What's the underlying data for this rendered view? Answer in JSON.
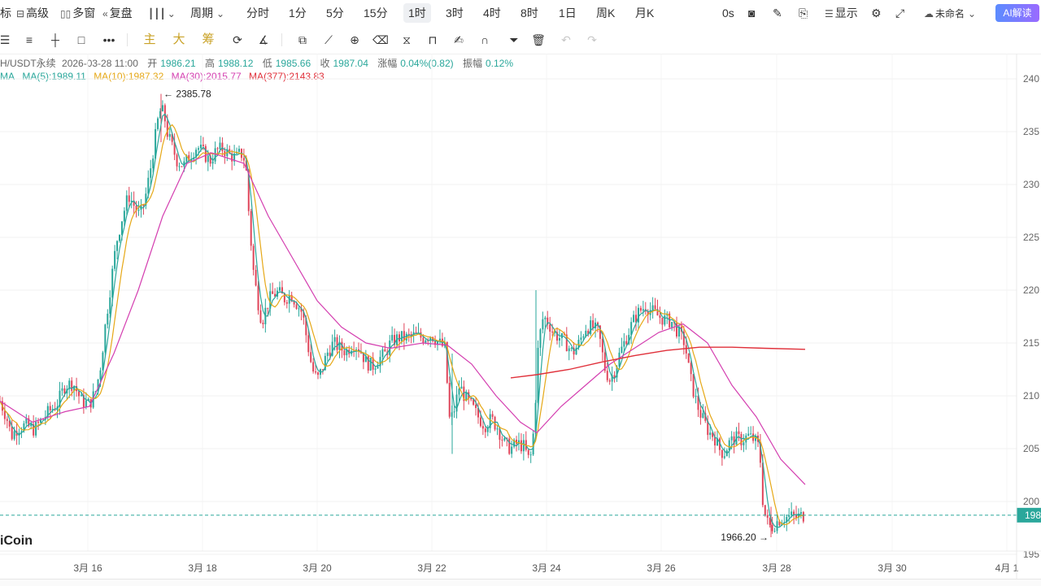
{
  "topbar": {
    "left_partial": "标",
    "advanced": "高级",
    "multi_window": "多窗",
    "replay": "复盘",
    "period": "周期",
    "intervals": [
      "分时",
      "1分",
      "5分",
      "15分",
      "1时",
      "3时",
      "4时",
      "8时",
      "1日",
      "周K",
      "月K"
    ],
    "active_interval": "1时",
    "countdown": "0s",
    "display": "显示",
    "layout_name": "未命名",
    "ai_button": "AI解读"
  },
  "toolbar": {
    "gold_buttons": [
      "主",
      "大",
      "筹"
    ]
  },
  "info": {
    "symbol": "H/USDT永续",
    "datetime": "2026-03-28 11:00",
    "open_label": "开",
    "open": "1986.21",
    "high_label": "高",
    "high": "1988.12",
    "low_label": "低",
    "low": "1985.66",
    "close_label": "收",
    "close": "1987.04",
    "change_label": "涨幅",
    "change": "0.04%(0.82)",
    "amp_label": "振幅",
    "amp": "0.12%"
  },
  "ma": {
    "label": "MA",
    "ma5": "MA(5):1989.11",
    "ma10": "MA(10):1987.32",
    "ma30": "MA(30):2015.77",
    "ma377": "MA(377):2143.83"
  },
  "colors": {
    "up": "#2aa79b",
    "down": "#e0455a",
    "ma5": "#2aa79b",
    "ma10": "#e6a817",
    "ma30": "#d43fb0",
    "ma377": "#e0303a"
  },
  "chart_data": {
    "type": "candlestick",
    "x_ticks": [
      "3月 16",
      "3月 18",
      "3月 20",
      "3月 22",
      "3月 24",
      "3月 26",
      "3月 28",
      "3月 30",
      "4月 1"
    ],
    "y_ticks": [
      "240",
      "235",
      "230",
      "225",
      "220",
      "215",
      "210",
      "205",
      "200",
      "195"
    ],
    "ylim": [
      1948,
      2410
    ],
    "max_annotation": "← 2385.78",
    "max_value": 2385.78,
    "min_annotation": "1966.20 →",
    "min_value": 1966.2,
    "last_price": 1987.04,
    "last_price_label": "198",
    "price_path": [
      [
        0,
        2095
      ],
      [
        8,
        2080
      ],
      [
        14,
        2062
      ],
      [
        22,
        2070
      ],
      [
        32,
        2072
      ],
      [
        42,
        2068
      ],
      [
        52,
        2078
      ],
      [
        60,
        2085
      ],
      [
        70,
        2092
      ],
      [
        80,
        2110
      ],
      [
        90,
        2112
      ],
      [
        100,
        2095
      ],
      [
        110,
        2092
      ],
      [
        118,
        2105
      ],
      [
        124,
        2130
      ],
      [
        130,
        2170
      ],
      [
        137,
        2210
      ],
      [
        143,
        2245
      ],
      [
        150,
        2268
      ],
      [
        158,
        2290
      ],
      [
        165,
        2280
      ],
      [
        172,
        2270
      ],
      [
        178,
        2285
      ],
      [
        184,
        2310
      ],
      [
        190,
        2340
      ],
      [
        194,
        2360
      ],
      [
        198,
        2372
      ],
      [
        202,
        2365
      ],
      [
        206,
        2348
      ],
      [
        212,
        2335
      ],
      [
        218,
        2322
      ],
      [
        226,
        2318
      ],
      [
        234,
        2328
      ],
      [
        242,
        2336
      ],
      [
        250,
        2330
      ],
      [
        258,
        2322
      ],
      [
        266,
        2332
      ],
      [
        274,
        2334
      ],
      [
        282,
        2328
      ],
      [
        290,
        2325
      ],
      [
        296,
        2330
      ],
      [
        302,
        2322
      ],
      [
        307,
        2260
      ],
      [
        312,
        2215
      ],
      [
        317,
        2190
      ],
      [
        322,
        2170
      ],
      [
        328,
        2185
      ],
      [
        334,
        2195
      ],
      [
        342,
        2198
      ],
      [
        350,
        2192
      ],
      [
        358,
        2196
      ],
      [
        366,
        2186
      ],
      [
        372,
        2178
      ],
      [
        378,
        2150
      ],
      [
        384,
        2125
      ],
      [
        390,
        2115
      ],
      [
        396,
        2125
      ],
      [
        402,
        2140
      ],
      [
        410,
        2150
      ],
      [
        418,
        2145
      ],
      [
        426,
        2142
      ],
      [
        434,
        2150
      ],
      [
        442,
        2145
      ],
      [
        450,
        2132
      ],
      [
        458,
        2128
      ],
      [
        466,
        2135
      ],
      [
        474,
        2140
      ],
      [
        480,
        2150
      ],
      [
        490,
        2155
      ],
      [
        500,
        2155
      ],
      [
        510,
        2157
      ],
      [
        520,
        2155
      ],
      [
        530,
        2158
      ],
      [
        540,
        2150
      ],
      [
        547,
        2145
      ],
      [
        553,
        2075
      ],
      [
        558,
        2085
      ],
      [
        565,
        2110
      ],
      [
        572,
        2098
      ],
      [
        580,
        2090
      ],
      [
        588,
        2080
      ],
      [
        596,
        2072
      ],
      [
        604,
        2078
      ],
      [
        612,
        2070
      ],
      [
        620,
        2055
      ],
      [
        628,
        2050
      ],
      [
        636,
        2055
      ],
      [
        644,
        2052
      ],
      [
        650,
        2040
      ],
      [
        654,
        2045
      ],
      [
        658,
        2090
      ],
      [
        662,
        2150
      ],
      [
        668,
        2175
      ],
      [
        674,
        2170
      ],
      [
        680,
        2160
      ],
      [
        688,
        2155
      ],
      [
        696,
        2150
      ],
      [
        704,
        2140
      ],
      [
        712,
        2150
      ],
      [
        720,
        2165
      ],
      [
        728,
        2165
      ],
      [
        736,
        2160
      ],
      [
        744,
        2125
      ],
      [
        750,
        2115
      ],
      [
        756,
        2125
      ],
      [
        762,
        2140
      ],
      [
        770,
        2155
      ],
      [
        778,
        2170
      ],
      [
        786,
        2180
      ],
      [
        794,
        2185
      ],
      [
        802,
        2180
      ],
      [
        810,
        2175
      ],
      [
        818,
        2172
      ],
      [
        826,
        2170
      ],
      [
        834,
        2160
      ],
      [
        842,
        2150
      ],
      [
        848,
        2120
      ],
      [
        854,
        2100
      ],
      [
        860,
        2085
      ],
      [
        866,
        2075
      ],
      [
        872,
        2065
      ],
      [
        878,
        2062
      ],
      [
        884,
        2050
      ],
      [
        890,
        2045
      ],
      [
        896,
        2055
      ],
      [
        904,
        2060
      ],
      [
        912,
        2058
      ],
      [
        920,
        2062
      ],
      [
        928,
        2058
      ],
      [
        934,
        2050
      ],
      [
        938,
        2000
      ],
      [
        942,
        1982
      ],
      [
        948,
        1975
      ],
      [
        954,
        1980
      ],
      [
        960,
        1984
      ],
      [
        966,
        1985
      ],
      [
        972,
        1986
      ],
      [
        978,
        1985
      ],
      [
        984,
        1986
      ],
      [
        988,
        1987
      ]
    ],
    "ma30_path": [
      [
        0,
        2095
      ],
      [
        40,
        2075
      ],
      [
        80,
        2085
      ],
      [
        110,
        2090
      ],
      [
        140,
        2140
      ],
      [
        170,
        2200
      ],
      [
        200,
        2270
      ],
      [
        230,
        2320
      ],
      [
        260,
        2330
      ],
      [
        300,
        2320
      ],
      [
        330,
        2270
      ],
      [
        360,
        2230
      ],
      [
        390,
        2190
      ],
      [
        420,
        2165
      ],
      [
        450,
        2150
      ],
      [
        480,
        2145
      ],
      [
        520,
        2150
      ],
      [
        550,
        2148
      ],
      [
        580,
        2130
      ],
      [
        610,
        2100
      ],
      [
        640,
        2075
      ],
      [
        660,
        2065
      ],
      [
        690,
        2090
      ],
      [
        720,
        2110
      ],
      [
        750,
        2130
      ],
      [
        780,
        2145
      ],
      [
        810,
        2160
      ],
      [
        840,
        2168
      ],
      [
        870,
        2150
      ],
      [
        900,
        2110
      ],
      [
        930,
        2080
      ],
      [
        960,
        2040
      ],
      [
        990,
        2016
      ]
    ],
    "ma377_path": [
      [
        628,
        2117
      ],
      [
        660,
        2120
      ],
      [
        700,
        2125
      ],
      [
        740,
        2132
      ],
      [
        780,
        2138
      ],
      [
        820,
        2143
      ],
      [
        860,
        2146
      ],
      [
        900,
        2146
      ],
      [
        940,
        2145
      ],
      [
        990,
        2144
      ]
    ]
  }
}
